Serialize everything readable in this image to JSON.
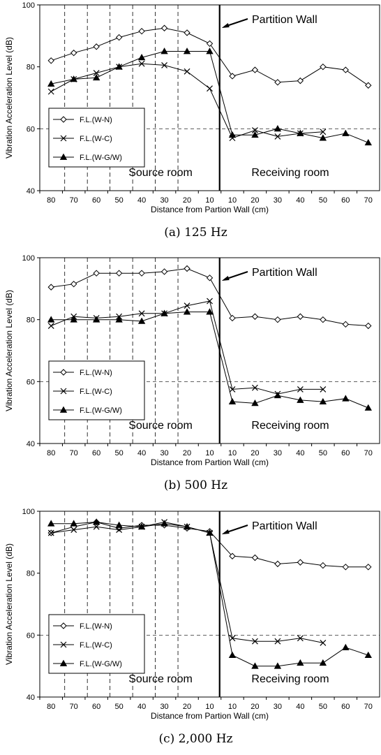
{
  "common": {
    "ylabel": "Vibration Acceleration Level (dB)",
    "xlabel": "Distance from Partion Wall (cm)",
    "annotation": "Partition Wall",
    "source_label": "Source room",
    "receiving_label": "Receiving room",
    "ylim": [
      40,
      100
    ],
    "yticks": [
      "40",
      "60",
      "80",
      "100"
    ],
    "xticks": [
      "80",
      "70",
      "60",
      "50",
      "40",
      "30",
      "20",
      "10",
      "10",
      "20",
      "30",
      "40",
      "50",
      "60",
      "70"
    ],
    "legend": [
      "F.L.(W-N)",
      "F.L.(W-C)",
      "F.L.(W-G/W)"
    ],
    "reference_level": 60
  },
  "chart_data": [
    {
      "type": "line",
      "caption": "(a)  125 Hz",
      "categories": [
        "80",
        "70",
        "60",
        "50",
        "40",
        "30",
        "20",
        "10",
        "10",
        "20",
        "30",
        "40",
        "50",
        "60",
        "70"
      ],
      "series": [
        {
          "name": "F.L.(W-N)",
          "marker": "diamond",
          "values": [
            82,
            84.5,
            86.5,
            89.5,
            91.5,
            92.5,
            91,
            87.5,
            77,
            79,
            75,
            75.5,
            80,
            79,
            74
          ]
        },
        {
          "name": "F.L.(W-C)",
          "marker": "x",
          "values": [
            72,
            76,
            78,
            80,
            81,
            80.5,
            78.5,
            73,
            57,
            59.5,
            57.5,
            58.5,
            59,
            null,
            null
          ]
        },
        {
          "name": "F.L.(W-G/W)",
          "marker": "triangle",
          "values": [
            74.5,
            76,
            76.5,
            80,
            83,
            85,
            85,
            85,
            58,
            58,
            60,
            58.5,
            57,
            58.5,
            55.5
          ]
        }
      ]
    },
    {
      "type": "line",
      "caption": "(b)  500 Hz",
      "categories": [
        "80",
        "70",
        "60",
        "50",
        "40",
        "30",
        "20",
        "10",
        "10",
        "20",
        "30",
        "40",
        "50",
        "60",
        "70"
      ],
      "series": [
        {
          "name": "F.L.(W-N)",
          "marker": "diamond",
          "values": [
            90.5,
            91.5,
            95,
            95,
            95,
            95.5,
            96.5,
            93.5,
            80.5,
            81,
            80,
            81,
            80,
            78.5,
            78
          ]
        },
        {
          "name": "F.L.(W-C)",
          "marker": "x",
          "values": [
            78,
            81,
            80.5,
            81,
            82,
            82,
            84.5,
            86,
            57.5,
            58,
            56,
            57.5,
            57.5,
            null,
            null
          ]
        },
        {
          "name": "F.L.(W-G/W)",
          "marker": "triangle",
          "values": [
            80,
            80,
            80,
            80,
            79.5,
            82,
            82.5,
            82.5,
            53.5,
            53,
            55.5,
            54,
            53.5,
            54.5,
            51.5
          ]
        }
      ]
    },
    {
      "type": "line",
      "caption": "(c)  2,000 Hz",
      "categories": [
        "80",
        "70",
        "60",
        "50",
        "40",
        "30",
        "20",
        "10",
        "10",
        "20",
        "30",
        "40",
        "50",
        "60",
        "70"
      ],
      "series": [
        {
          "name": "F.L.(W-N)",
          "marker": "diamond",
          "values": [
            93,
            95,
            96.5,
            94.5,
            95.5,
            95.5,
            94.5,
            93.5,
            85.5,
            85,
            83,
            83.5,
            82.5,
            82,
            82
          ]
        },
        {
          "name": "F.L.(W-C)",
          "marker": "x",
          "values": [
            93,
            94,
            95,
            94,
            95,
            96.5,
            95,
            93,
            59,
            58,
            58,
            59,
            57.5,
            null,
            null
          ]
        },
        {
          "name": "F.L.(W-G/W)",
          "marker": "triangle",
          "values": [
            96,
            96,
            96.5,
            95.5,
            95,
            96,
            95,
            93,
            53.5,
            50,
            50,
            51,
            51,
            56,
            53.5
          ]
        }
      ]
    }
  ]
}
